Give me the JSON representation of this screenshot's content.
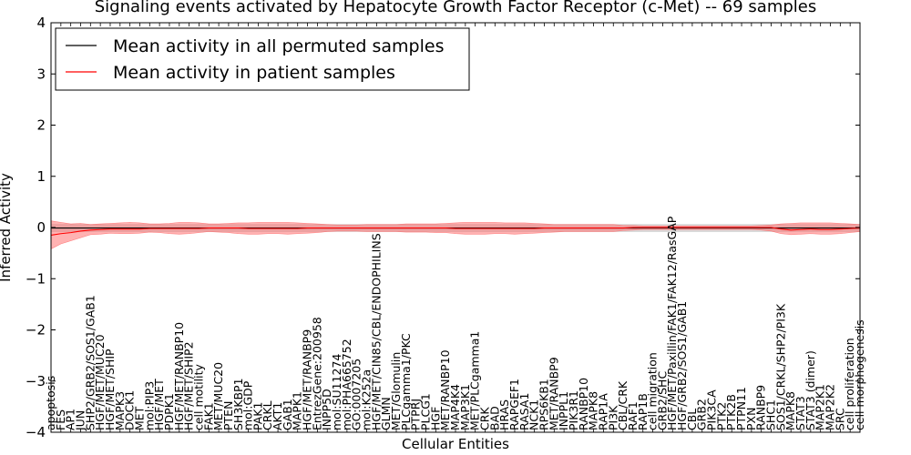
{
  "chart_data": {
    "type": "line",
    "title": "Signaling events activated by Hepatocyte Growth Factor Receptor (c-Met) -- 69 samples",
    "xlabel": "Cellular Entities",
    "ylabel": "Inferred Activity",
    "ylim": [
      -4,
      4
    ],
    "yticks": [
      -4,
      -3,
      -2,
      -1,
      0,
      1,
      2,
      3,
      4
    ],
    "ytick_labels": [
      "−4",
      "−3",
      "−2",
      "−1",
      "0",
      "1",
      "2",
      "3",
      "4"
    ],
    "legend_position": "top-left",
    "categories": [
      "apoptosis",
      "FES",
      "AP1",
      "JUN",
      "SHP2/GRB2/SOS1/GAB1",
      "HGF/MET/MUC20",
      "HGF/MET/SHIP",
      "MAPK3",
      "DOCK1",
      "MET",
      "mol:PIP3",
      "HGF/MET",
      "PDPK1",
      "HGF/MET/RANBP10",
      "HGF/MET/SHIP2",
      "cell motility",
      "FAK1",
      "MET/MUC20",
      "PTEN",
      "SH3KBP1",
      "mol:GDP",
      "PAK1",
      "CRKL",
      "AKT1",
      "GAB1",
      "MAPK1",
      "HGF/MET/RANBP9",
      "EntrezGene:200958",
      "INPP5D",
      "mol:SU11274",
      "mol:PHA665752",
      "GO:0007205",
      "mol:K252a",
      "HGF/MET/CIN85/CBL/ENDOPHILINS",
      "GLMN",
      "MET/Glomulin",
      "PLCgamma1/PKC",
      "PTPRJ",
      "PLCG1",
      "HGF",
      "MET/RANBP10",
      "MAP4K4",
      "MAP3K1",
      "MET/PLCgamma1",
      "CRK",
      "BAD",
      "HRAS",
      "RAPGEF1",
      "RASA1",
      "NCK1",
      "RPS6KB1",
      "MET/RANBP9",
      "INPPL1",
      "PIK3R1",
      "RANBP10",
      "MAPK8",
      "RAP1A",
      "PI3K",
      "CBL/CRK",
      "RAF1",
      "RAP1B",
      "cell migration",
      "GRB2/SHC",
      "HGF/MET/Paxillin/FAK1/FAK12/RasGAP",
      "HGF/GRB2/SOS1/GAB1",
      "CBL",
      "GRB2",
      "PIK3CA",
      "PTK2",
      "PTK2B",
      "PTPN11",
      "PXN",
      "RANBP9",
      "SHC1",
      "SOS1/CRKL/SHP2/PI3K",
      "MAPK8",
      "STAT3",
      "STAT3 (dimer)",
      "MAP2K1",
      "MAP2K2",
      "SRC",
      "cell proliferation",
      "cell morphogenesis"
    ],
    "series": [
      {
        "name": "Mean activity in all permuted samples",
        "color": "#000000",
        "values": [
          -0.01,
          -0.01,
          -0.01,
          -0.01,
          -0.01,
          -0.01,
          -0.01,
          -0.01,
          -0.01,
          -0.01,
          -0.01,
          -0.01,
          -0.01,
          -0.01,
          -0.01,
          -0.01,
          -0.01,
          -0.01,
          -0.01,
          -0.01,
          -0.01,
          -0.01,
          -0.01,
          -0.01,
          -0.01,
          -0.01,
          -0.01,
          -0.01,
          -0.01,
          -0.01,
          -0.01,
          -0.01,
          -0.01,
          -0.01,
          -0.01,
          -0.01,
          -0.01,
          -0.01,
          -0.01,
          -0.01,
          -0.01,
          -0.01,
          -0.01,
          -0.01,
          -0.01,
          -0.01,
          -0.01,
          -0.01,
          -0.01,
          -0.01,
          -0.01,
          -0.01,
          -0.01,
          -0.01,
          -0.01,
          -0.01,
          -0.01,
          -0.01,
          -0.01,
          -0.01,
          -0.01,
          -0.01,
          -0.01,
          -0.01,
          -0.01,
          -0.01,
          -0.01,
          -0.01,
          -0.01,
          -0.01,
          -0.01,
          -0.01,
          -0.01,
          -0.01,
          -0.01,
          -0.01,
          -0.01,
          -0.01,
          -0.01,
          -0.01,
          -0.01,
          -0.01,
          -0.01
        ],
        "band": {
          "lower": -0.08,
          "upper": 0.06,
          "color": "#bbbbbb"
        }
      },
      {
        "name": "Mean activity in patient samples",
        "color": "#ff0000",
        "values": [
          -0.15,
          -0.12,
          -0.1,
          -0.07,
          -0.05,
          -0.04,
          -0.03,
          -0.03,
          -0.03,
          -0.03,
          -0.02,
          -0.02,
          -0.02,
          -0.02,
          -0.02,
          -0.02,
          -0.01,
          -0.01,
          -0.01,
          -0.01,
          -0.02,
          -0.02,
          -0.02,
          -0.02,
          -0.02,
          -0.02,
          -0.01,
          -0.01,
          -0.01,
          -0.01,
          -0.01,
          -0.01,
          -0.01,
          -0.01,
          -0.01,
          -0.01,
          -0.01,
          -0.01,
          -0.01,
          -0.01,
          -0.01,
          -0.02,
          -0.02,
          -0.02,
          -0.02,
          -0.02,
          -0.02,
          -0.02,
          -0.02,
          -0.02,
          -0.01,
          -0.01,
          -0.01,
          -0.01,
          -0.01,
          -0.01,
          -0.01,
          -0.01,
          -0.01,
          0.0,
          0.0,
          0.0,
          0.0,
          0.0,
          0.0,
          0.0,
          0.0,
          0.0,
          0.0,
          0.0,
          0.0,
          0.0,
          0.0,
          0.0,
          -0.03,
          -0.05,
          -0.04,
          -0.03,
          -0.04,
          -0.04,
          -0.03,
          -0.02,
          -0.01
        ],
        "band": {
          "lower": [
            -0.42,
            -0.32,
            -0.26,
            -0.2,
            -0.14,
            -0.13,
            -0.11,
            -0.12,
            -0.12,
            -0.11,
            -0.09,
            -0.1,
            -0.12,
            -0.13,
            -0.12,
            -0.1,
            -0.08,
            -0.09,
            -0.1,
            -0.12,
            -0.13,
            -0.13,
            -0.12,
            -0.12,
            -0.13,
            -0.12,
            -0.11,
            -0.1,
            -0.08,
            -0.07,
            -0.07,
            -0.07,
            -0.08,
            -0.08,
            -0.08,
            -0.08,
            -0.09,
            -0.09,
            -0.09,
            -0.1,
            -0.1,
            -0.12,
            -0.13,
            -0.13,
            -0.13,
            -0.12,
            -0.12,
            -0.13,
            -0.12,
            -0.11,
            -0.1,
            -0.09,
            -0.08,
            -0.08,
            -0.08,
            -0.08,
            -0.08,
            -0.08,
            -0.06,
            -0.05,
            -0.04,
            -0.04,
            -0.04,
            -0.04,
            -0.04,
            -0.04,
            -0.04,
            -0.04,
            -0.04,
            -0.04,
            -0.04,
            -0.04,
            -0.05,
            -0.07,
            -0.12,
            -0.14,
            -0.13,
            -0.12,
            -0.13,
            -0.13,
            -0.12,
            -0.1,
            -0.08
          ],
          "upper": [
            0.13,
            0.1,
            0.07,
            0.08,
            0.06,
            0.07,
            0.08,
            0.09,
            0.1,
            0.09,
            0.07,
            0.07,
            0.08,
            0.1,
            0.1,
            0.09,
            0.07,
            0.07,
            0.08,
            0.09,
            0.09,
            0.1,
            0.1,
            0.1,
            0.1,
            0.09,
            0.08,
            0.07,
            0.06,
            0.05,
            0.05,
            0.05,
            0.06,
            0.06,
            0.06,
            0.06,
            0.07,
            0.07,
            0.07,
            0.07,
            0.08,
            0.09,
            0.1,
            0.1,
            0.1,
            0.1,
            0.09,
            0.09,
            0.09,
            0.08,
            0.07,
            0.06,
            0.06,
            0.06,
            0.06,
            0.06,
            0.06,
            0.06,
            0.04,
            0.04,
            0.03,
            0.03,
            0.03,
            0.03,
            0.03,
            0.03,
            0.03,
            0.03,
            0.03,
            0.03,
            0.03,
            0.03,
            0.04,
            0.05,
            0.07,
            0.08,
            0.09,
            0.09,
            0.09,
            0.09,
            0.08,
            0.07,
            0.06
          ],
          "color": "#ff6666"
        }
      }
    ]
  }
}
